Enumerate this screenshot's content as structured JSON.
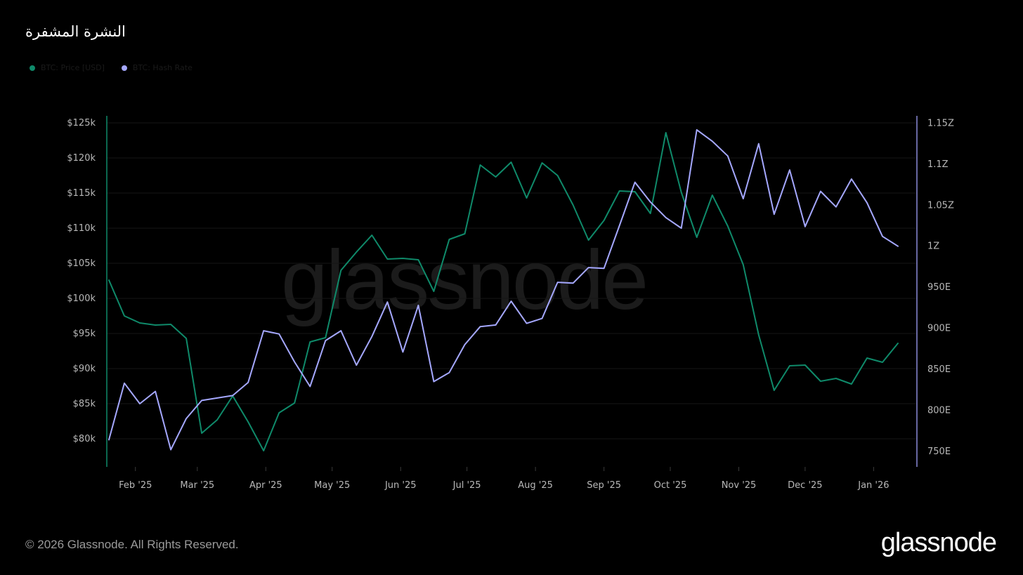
{
  "title": "النشرة المشفرة",
  "legend": [
    {
      "label": "BTC: Price [USD]",
      "color": "#0f8a6a"
    },
    {
      "label": "BTC: Hash Rate",
      "color": "#a5a8ff"
    }
  ],
  "watermark": "glassnode",
  "footer": {
    "copyright": "© 2026 Glassnode. All Rights Reserved.",
    "logo": "glassnode"
  },
  "chart_data": {
    "type": "line",
    "title": "النشرة المشفرة",
    "x_tick_labels": [
      "Feb '25",
      "Mar '25",
      "Apr '25",
      "May '25",
      "Jun '25",
      "Jul '25",
      "Aug '25",
      "Sep '25",
      "Oct '25",
      "Nov '25",
      "Dec '25",
      "Jan '26"
    ],
    "y_left": {
      "ticks": [
        80000,
        85000,
        90000,
        95000,
        100000,
        105000,
        110000,
        115000,
        120000,
        125000
      ],
      "tick_labels": [
        "$80k",
        "$85k",
        "$90k",
        "$95k",
        "$100k",
        "$105k",
        "$110k",
        "$115k",
        "$120k",
        "$125k"
      ],
      "range": [
        76000,
        126000
      ]
    },
    "y_right": {
      "ticks": [
        750,
        800,
        850,
        900,
        950,
        1000,
        1050,
        1100,
        1150
      ],
      "tick_labels": [
        "750E",
        "800E",
        "850E",
        "900E",
        "950E",
        "1Z",
        "1.05Z",
        "1.1Z",
        "1.15Z"
      ],
      "range": [
        731,
        1159
      ]
    },
    "x": [
      "2025-01-20",
      "2025-01-27",
      "2025-02-03",
      "2025-02-10",
      "2025-02-17",
      "2025-02-24",
      "2025-03-03",
      "2025-03-10",
      "2025-03-17",
      "2025-03-24",
      "2025-03-31",
      "2025-04-07",
      "2025-04-14",
      "2025-04-21",
      "2025-04-28",
      "2025-05-05",
      "2025-05-12",
      "2025-05-19",
      "2025-05-26",
      "2025-06-02",
      "2025-06-09",
      "2025-06-16",
      "2025-06-23",
      "2025-06-30",
      "2025-07-07",
      "2025-07-14",
      "2025-07-21",
      "2025-07-28",
      "2025-08-04",
      "2025-08-11",
      "2025-08-18",
      "2025-08-25",
      "2025-09-01",
      "2025-09-08",
      "2025-09-15",
      "2025-09-22",
      "2025-09-29",
      "2025-10-06",
      "2025-10-13",
      "2025-10-20",
      "2025-10-27",
      "2025-11-03",
      "2025-11-10",
      "2025-11-17",
      "2025-11-24",
      "2025-12-01",
      "2025-12-08",
      "2025-12-15",
      "2025-12-22",
      "2025-12-29",
      "2026-01-05",
      "2026-01-12"
    ],
    "series": [
      {
        "name": "BTC: Price [USD]",
        "axis": "left",
        "color": "#0f8a6a",
        "values": [
          102600,
          97500,
          96500,
          96200,
          96300,
          94300,
          80800,
          82700,
          86100,
          82400,
          78300,
          83700,
          85100,
          93800,
          94400,
          104000,
          106600,
          109000,
          105600,
          105700,
          105500,
          101000,
          108400,
          109200,
          119000,
          117300,
          119400,
          114300,
          119300,
          117500,
          113300,
          108300,
          111100,
          115300,
          115200,
          112100,
          123600,
          115100,
          108700,
          114700,
          110300,
          104800,
          94800,
          86900,
          90400,
          90500,
          88200,
          88600,
          87800,
          91500,
          90900,
          93600
        ]
      },
      {
        "name": "BTC: Hash Rate",
        "axis": "right",
        "color": "#a5a8ff",
        "values": [
          764,
          833,
          808,
          823,
          752,
          790,
          812,
          815,
          818,
          834,
          897,
          893,
          859,
          829,
          885,
          897,
          855,
          890,
          932,
          871,
          928,
          835,
          846,
          880,
          902,
          904,
          933,
          906,
          912,
          956,
          955,
          974,
          973,
          1025,
          1078,
          1054,
          1035,
          1022,
          1142,
          1128,
          1110,
          1058,
          1125,
          1039,
          1093,
          1024,
          1067,
          1048,
          1082,
          1053,
          1012,
          1000
        ]
      }
    ],
    "grid": true,
    "legend_position": "top-left"
  }
}
